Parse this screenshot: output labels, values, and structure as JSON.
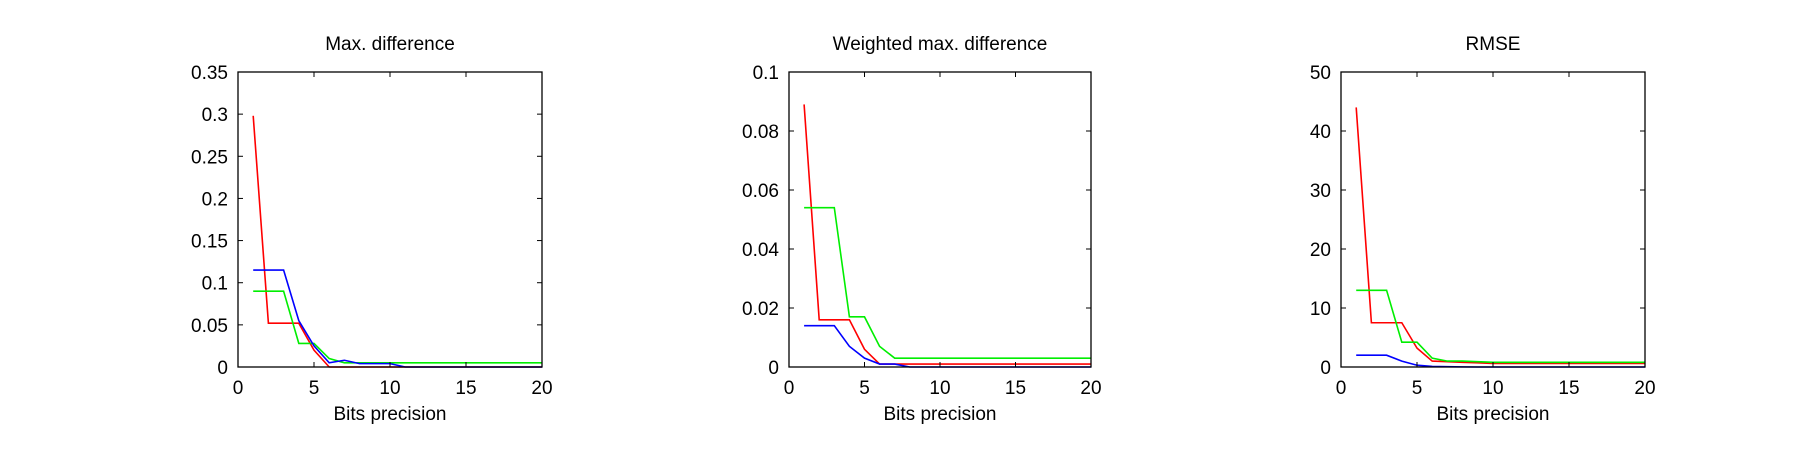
{
  "chart_data": [
    {
      "type": "line",
      "title": "Max. difference",
      "xlabel": "Bits precision",
      "ylabel": "",
      "xlim": [
        0,
        20
      ],
      "ylim": [
        0,
        0.35
      ],
      "xticks": [
        "0",
        "5",
        "10",
        "15",
        "20"
      ],
      "yticks": [
        "0",
        "0.05",
        "0.1",
        "0.15",
        "0.2",
        "0.25",
        "0.3",
        "0.35"
      ],
      "x": [
        1,
        2,
        3,
        4,
        5,
        6,
        7,
        8,
        9,
        10,
        11,
        12,
        13,
        14,
        15,
        16,
        17,
        18,
        19,
        20
      ],
      "series": [
        {
          "color": "#ff0000",
          "values": [
            0.298,
            0.052,
            0.052,
            0.052,
            0.02,
            0.0,
            0.0,
            0.0,
            0.0,
            0.0,
            0.0,
            0.0,
            0.0,
            0.0,
            0.0,
            0.0,
            0.0,
            0.0,
            0.0,
            0.0
          ]
        },
        {
          "color": "#00ee00",
          "values": [
            0.09,
            0.09,
            0.09,
            0.028,
            0.028,
            0.01,
            0.005,
            0.005,
            0.005,
            0.005,
            0.005,
            0.005,
            0.005,
            0.005,
            0.005,
            0.005,
            0.005,
            0.005,
            0.005,
            0.005
          ]
        },
        {
          "color": "#0000ff",
          "values": [
            0.115,
            0.115,
            0.115,
            0.055,
            0.025,
            0.005,
            0.008,
            0.004,
            0.004,
            0.004,
            0.0,
            0.0,
            0.0,
            0.0,
            0.0,
            0.0,
            0.0,
            0.0,
            0.0,
            0.0
          ]
        }
      ]
    },
    {
      "type": "line",
      "title": "Weighted max. difference",
      "xlabel": "Bits precision",
      "ylabel": "",
      "xlim": [
        0,
        20
      ],
      "ylim": [
        0,
        0.1
      ],
      "xticks": [
        "0",
        "5",
        "10",
        "15",
        "20"
      ],
      "yticks": [
        "0",
        "0.02",
        "0.04",
        "0.06",
        "0.08",
        "0.1"
      ],
      "x": [
        1,
        2,
        3,
        4,
        5,
        6,
        7,
        8,
        9,
        10,
        11,
        12,
        13,
        14,
        15,
        16,
        17,
        18,
        19,
        20
      ],
      "series": [
        {
          "color": "#ff0000",
          "values": [
            0.089,
            0.016,
            0.016,
            0.016,
            0.006,
            0.001,
            0.001,
            0.001,
            0.001,
            0.001,
            0.001,
            0.001,
            0.001,
            0.001,
            0.001,
            0.001,
            0.001,
            0.001,
            0.001,
            0.001
          ]
        },
        {
          "color": "#00ee00",
          "values": [
            0.054,
            0.054,
            0.054,
            0.017,
            0.017,
            0.007,
            0.003,
            0.003,
            0.003,
            0.003,
            0.003,
            0.003,
            0.003,
            0.003,
            0.003,
            0.003,
            0.003,
            0.003,
            0.003,
            0.003
          ]
        },
        {
          "color": "#0000ff",
          "values": [
            0.014,
            0.014,
            0.014,
            0.007,
            0.003,
            0.001,
            0.001,
            0.0,
            0.0,
            0.0,
            0.0,
            0.0,
            0.0,
            0.0,
            0.0,
            0.0,
            0.0,
            0.0,
            0.0,
            0.0
          ]
        }
      ]
    },
    {
      "type": "line",
      "title": "RMSE",
      "xlabel": "Bits precision",
      "ylabel": "",
      "xlim": [
        0,
        20
      ],
      "ylim": [
        0,
        50
      ],
      "xticks": [
        "0",
        "5",
        "10",
        "15",
        "20"
      ],
      "yticks": [
        "0",
        "10",
        "20",
        "30",
        "40",
        "50"
      ],
      "x": [
        1,
        2,
        3,
        4,
        5,
        6,
        7,
        8,
        9,
        10,
        11,
        12,
        13,
        14,
        15,
        16,
        17,
        18,
        19,
        20
      ],
      "series": [
        {
          "color": "#ff0000",
          "values": [
            44,
            7.5,
            7.5,
            7.5,
            3.2,
            1.0,
            0.9,
            0.8,
            0.7,
            0.6,
            0.6,
            0.6,
            0.6,
            0.6,
            0.6,
            0.6,
            0.6,
            0.6,
            0.6,
            0.6
          ]
        },
        {
          "color": "#00ee00",
          "values": [
            13,
            13,
            13,
            4.2,
            4.2,
            1.5,
            1.0,
            1.0,
            0.9,
            0.8,
            0.8,
            0.8,
            0.8,
            0.8,
            0.8,
            0.8,
            0.8,
            0.8,
            0.8,
            0.8
          ]
        },
        {
          "color": "#0000ff",
          "values": [
            2.0,
            2.0,
            2.0,
            1.0,
            0.3,
            0.1,
            0.05,
            0.02,
            0.0,
            0.0,
            0.0,
            0.0,
            0.0,
            0.0,
            0.0,
            0.0,
            0.0,
            0.0,
            0.0,
            0.0
          ]
        }
      ]
    }
  ]
}
